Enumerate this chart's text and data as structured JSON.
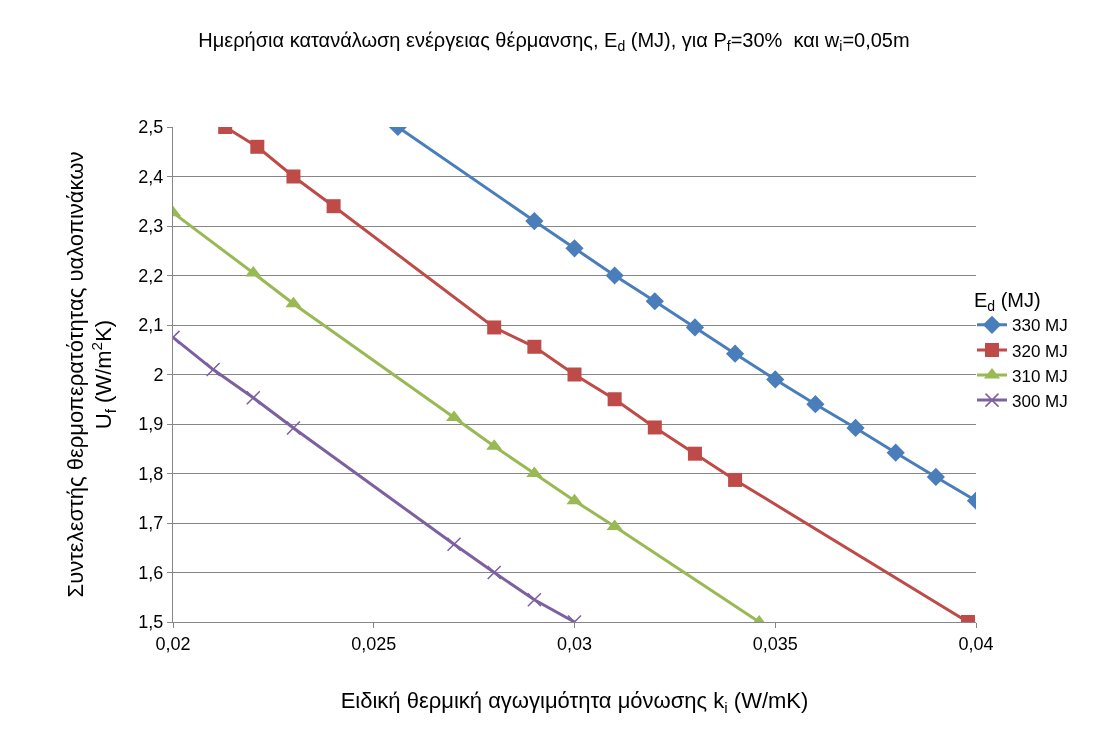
{
  "chart_data": {
    "type": "line",
    "title": "Ημερήσια κατανάλωση ενέργειας θέρμανσης, E$_{d}$ (MJ), για P$_{f}$=30%  και w$_{i}$=0,05m",
    "xlabel": "Ειδική θερμική αγωγιμότητα μόνωσης k$_{i}$ (W/mK)",
    "ylabel": "Συντελεστής θερμοπερατότητας υαλοπινάκων\nU$_{f}$ (W/m$^{2}$K)",
    "legend_title": "E$_{d}$ (MJ)",
    "series": [
      {
        "name": "330 MJ",
        "color": "#4a7ebb",
        "marker": "diamond",
        "x": [
          0.0256,
          0.029,
          0.03,
          0.031,
          0.032,
          0.033,
          0.034,
          0.035,
          0.036,
          0.037,
          0.038,
          0.039,
          0.04
        ],
        "values": [
          2.5,
          2.31,
          2.255,
          2.2,
          2.148,
          2.095,
          2.042,
          1.99,
          1.94,
          1.892,
          1.842,
          1.793,
          1.745
        ]
      },
      {
        "name": "320 MJ",
        "color": "#be4b48",
        "marker": "square",
        "x": [
          0.0213,
          0.0221,
          0.023,
          0.024,
          0.028,
          0.029,
          0.03,
          0.031,
          0.032,
          0.033,
          0.034,
          0.0398
        ],
        "values": [
          2.5,
          2.46,
          2.4,
          2.34,
          2.095,
          2.056,
          2.0,
          1.95,
          1.893,
          1.84,
          1.787,
          1.5
        ]
      },
      {
        "name": "310 MJ",
        "color": "#98b954",
        "marker": "triangle",
        "x": [
          0.02,
          0.022,
          0.023,
          0.027,
          0.028,
          0.029,
          0.03,
          0.031,
          0.0346
        ],
        "values": [
          2.327,
          2.205,
          2.143,
          1.913,
          1.855,
          1.8,
          1.745,
          1.693,
          1.5
        ]
      },
      {
        "name": "300 MJ",
        "color": "#7d60a0",
        "marker": "cross",
        "x": [
          0.02,
          0.021,
          0.022,
          0.023,
          0.027,
          0.028,
          0.029,
          0.03
        ],
        "values": [
          2.075,
          2.01,
          1.953,
          1.892,
          1.657,
          1.6,
          1.545,
          1.5
        ]
      }
    ],
    "xlim": [
      0.02,
      0.04
    ],
    "xticks": [
      {
        "value": 0.02,
        "label": "0,02"
      },
      {
        "value": 0.025,
        "label": "0,025"
      },
      {
        "value": 0.03,
        "label": "0,03"
      },
      {
        "value": 0.035,
        "label": "0,035"
      },
      {
        "value": 0.04,
        "label": "0,04"
      }
    ],
    "ylim": [
      1.5,
      2.5
    ],
    "yticks": [
      {
        "value": 1.5,
        "label": "1,5"
      },
      {
        "value": 1.6,
        "label": "1,6"
      },
      {
        "value": 1.7,
        "label": "1,7"
      },
      {
        "value": 1.8,
        "label": "1,8"
      },
      {
        "value": 1.9,
        "label": "1,9"
      },
      {
        "value": 2,
        "label": "2"
      },
      {
        "value": 2.1,
        "label": "2,1"
      },
      {
        "value": 2.2,
        "label": "2,2"
      },
      {
        "value": 2.3,
        "label": "2,3"
      },
      {
        "value": 2.4,
        "label": "2,4"
      },
      {
        "value": 2.5,
        "label": "2,5"
      }
    ],
    "grid": "y",
    "legend": "right",
    "line_style": "solid"
  }
}
